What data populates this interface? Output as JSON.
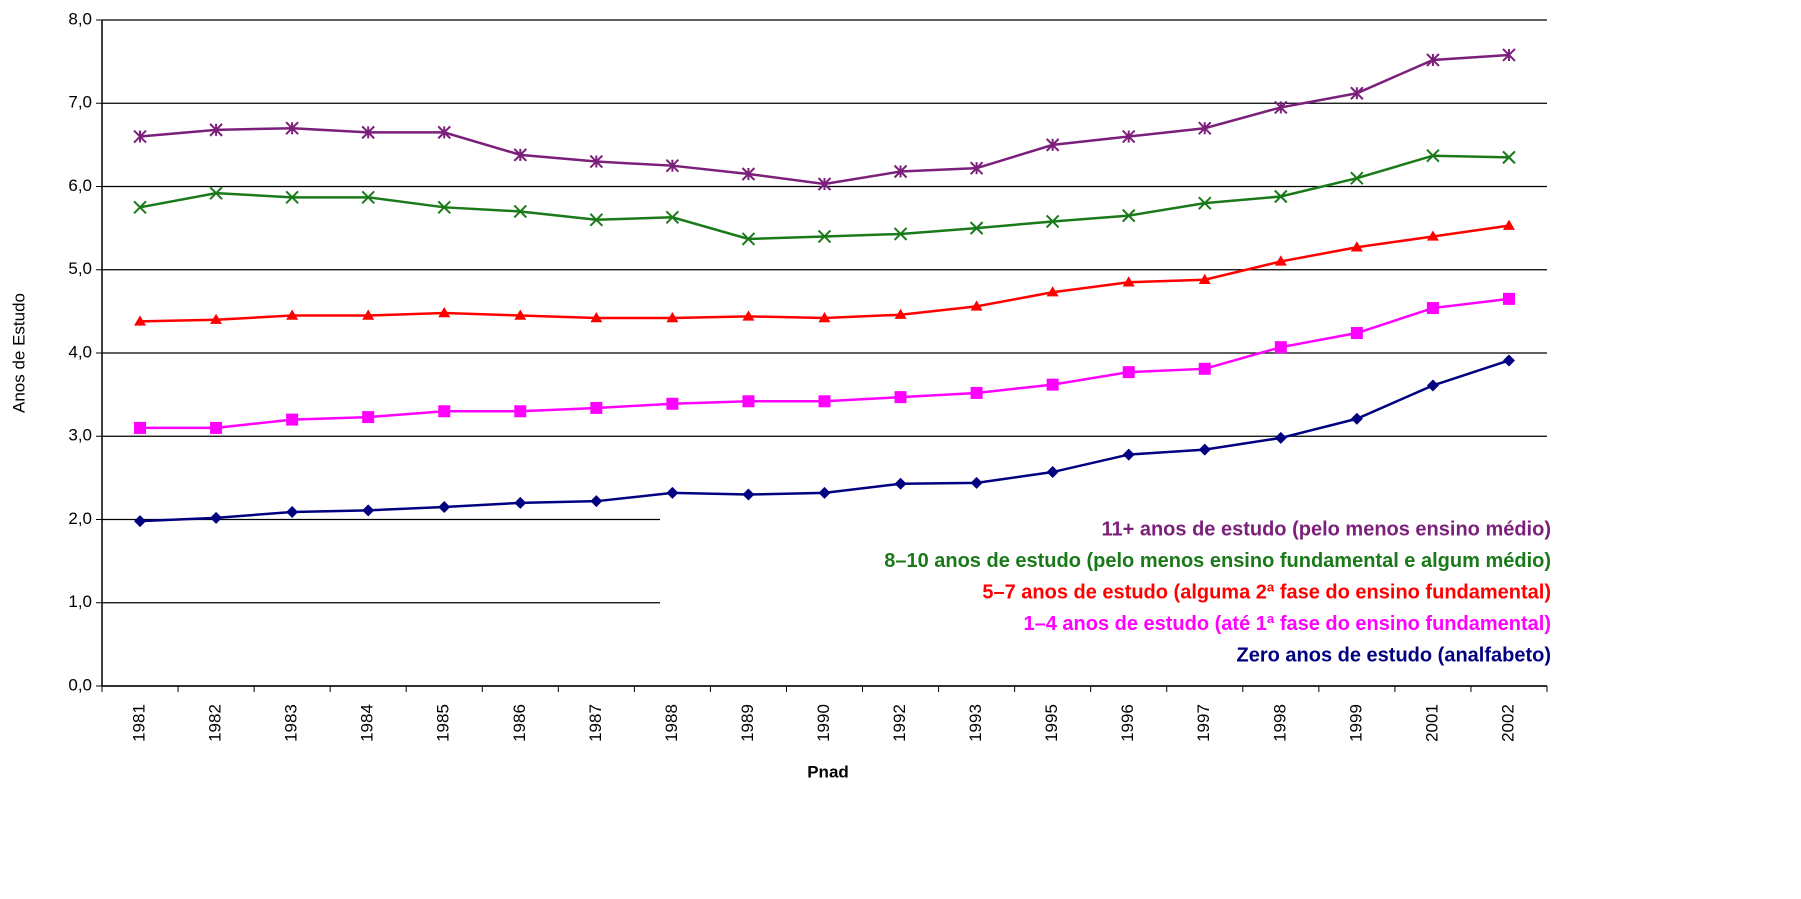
{
  "chart_data": {
    "type": "line",
    "x_label": "Pnad",
    "y_label": "Anos de Estudo",
    "categories": [
      "1981",
      "1982",
      "1983",
      "1984",
      "1985",
      "1986",
      "1987",
      "1988",
      "1989",
      "1990",
      "1992",
      "1993",
      "1995",
      "1996",
      "1997",
      "1998",
      "1999",
      "2001",
      "2002"
    ],
    "ylim": [
      0,
      8
    ],
    "yticks": [
      {
        "value": 0,
        "label": "0,0"
      },
      {
        "value": 1,
        "label": "1,0"
      },
      {
        "value": 2,
        "label": "2,0"
      },
      {
        "value": 3,
        "label": "3,0"
      },
      {
        "value": 4,
        "label": "4,0"
      },
      {
        "value": 5,
        "label": "5,0"
      },
      {
        "value": 6,
        "label": "6,0"
      },
      {
        "value": 7,
        "label": "7,0"
      },
      {
        "value": 8,
        "label": "8,0"
      }
    ],
    "grid": true,
    "legend": "bottom-right",
    "series": [
      {
        "name": "11+ anos de estudo (pelo menos ensino médio)",
        "color": "#7b1f7b",
        "marker": "asterisk",
        "values": [
          6.6,
          6.68,
          6.7,
          6.65,
          6.65,
          6.38,
          6.3,
          6.25,
          6.15,
          6.03,
          6.18,
          6.22,
          6.5,
          6.6,
          6.7,
          6.95,
          7.12,
          7.52,
          7.58
        ]
      },
      {
        "name": "8–10 anos de estudo (pelo menos ensino fundamental e algum médio)",
        "color": "#1a7a1a",
        "marker": "cross",
        "values": [
          5.75,
          5.92,
          5.87,
          5.87,
          5.75,
          5.7,
          5.6,
          5.63,
          5.37,
          5.4,
          5.43,
          5.5,
          5.58,
          5.65,
          5.8,
          5.88,
          6.1,
          6.37,
          6.35
        ]
      },
      {
        "name": "5–7 anos de estudo (alguma 2ª fase do ensino fundamental)",
        "color": "#ff0000",
        "marker": "triangle",
        "values": [
          4.38,
          4.4,
          4.45,
          4.45,
          4.48,
          4.45,
          4.42,
          4.42,
          4.44,
          4.42,
          4.46,
          4.56,
          4.73,
          4.85,
          4.88,
          5.1,
          5.27,
          5.4,
          5.53
        ]
      },
      {
        "name": "1–4 anos de estudo (até 1ª fase do ensino fundamental)",
        "color": "#ff00ff",
        "marker": "square",
        "values": [
          3.1,
          3.1,
          3.2,
          3.23,
          3.3,
          3.3,
          3.34,
          3.39,
          3.42,
          3.42,
          3.47,
          3.52,
          3.62,
          3.77,
          3.81,
          4.07,
          4.24,
          4.54,
          4.65
        ]
      },
      {
        "name": "Zero anos de estudo (analfabeto)",
        "color": "#000080",
        "marker": "diamond",
        "values": [
          1.98,
          2.02,
          2.09,
          2.11,
          2.15,
          2.2,
          2.22,
          2.32,
          2.3,
          2.32,
          2.43,
          2.44,
          2.57,
          2.78,
          2.84,
          2.98,
          3.21,
          3.61,
          3.91
        ]
      }
    ]
  }
}
